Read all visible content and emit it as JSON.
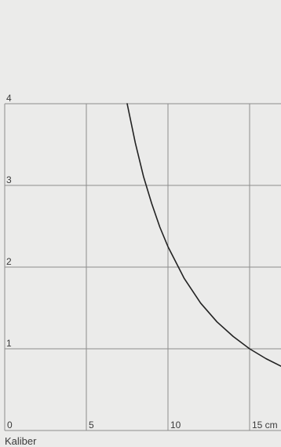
{
  "chart_data": {
    "type": "line",
    "xlabel": "Kaliber",
    "x_unit": "cm",
    "ylabel": "",
    "title": "",
    "xlim": [
      0,
      17
    ],
    "ylim": [
      0,
      4
    ],
    "x_ticks": [
      {
        "value": 0,
        "label": "0"
      },
      {
        "value": 5,
        "label": "5"
      },
      {
        "value": 10,
        "label": "10"
      },
      {
        "value": 15,
        "label": "15 cm"
      }
    ],
    "y_ticks": [
      {
        "value": 1,
        "label": "1"
      },
      {
        "value": 2,
        "label": "2"
      },
      {
        "value": 3,
        "label": "3"
      },
      {
        "value": 4,
        "label": "4"
      }
    ],
    "grid": true,
    "series": [
      {
        "color": "#222222",
        "x": [
          7.5,
          8.0,
          8.5,
          9.0,
          9.5,
          10.0,
          11.0,
          12.0,
          13.0,
          14.0,
          15.0,
          16.0,
          17.0
        ],
        "y": [
          4.0,
          3.52,
          3.11,
          2.78,
          2.49,
          2.25,
          1.86,
          1.56,
          1.33,
          1.15,
          1.0,
          0.88,
          0.78
        ]
      }
    ]
  }
}
